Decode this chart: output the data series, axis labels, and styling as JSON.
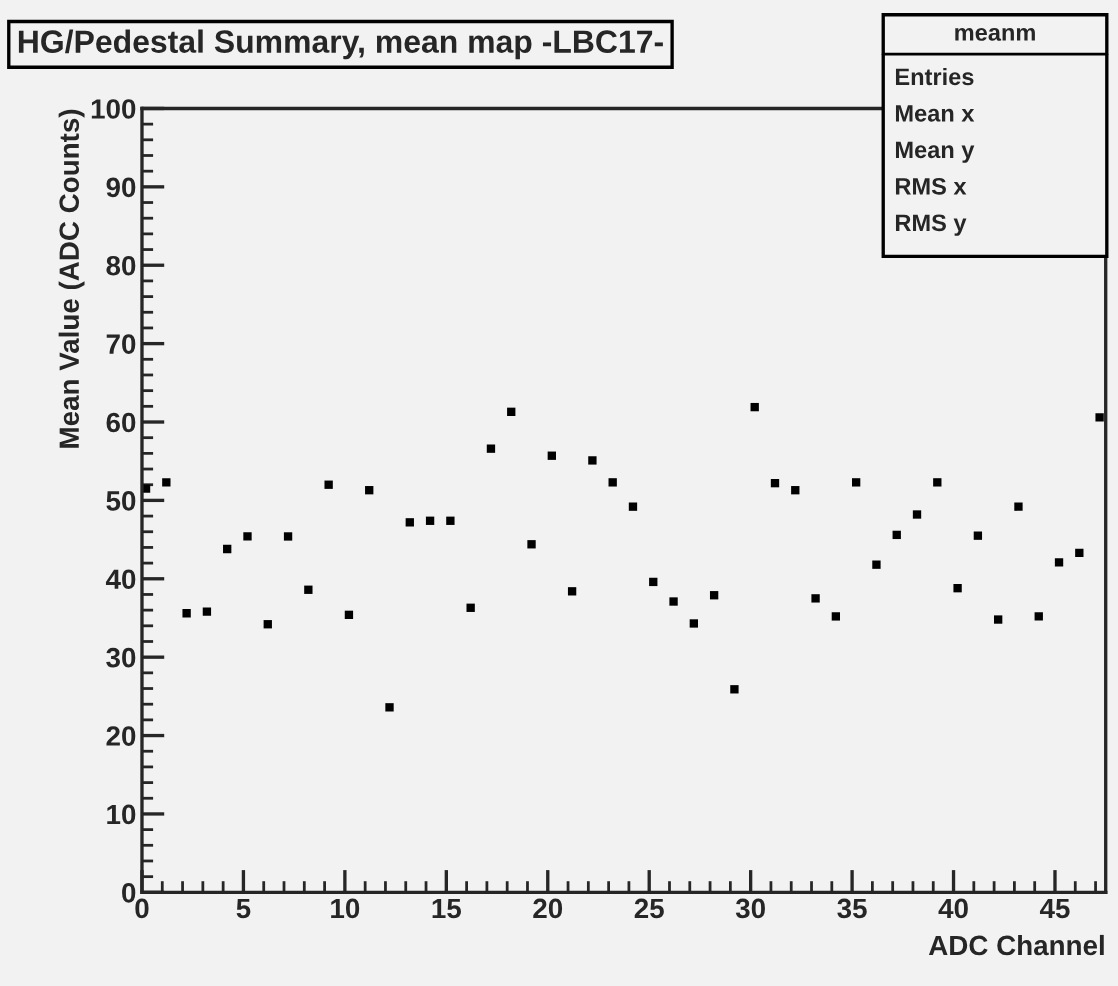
{
  "chart_data": {
    "type": "scatter",
    "title": "HG/Pedestal Summary, mean map -LBC17-",
    "xlabel": "ADC Channel",
    "ylabel": "Mean Value (ADC Counts)",
    "annotations": [
      "meanm",
      "Entries",
      "Mean x",
      "Mean y",
      "RMS x",
      "RMS y"
    ],
    "x": [
      0.2,
      1.2,
      2.2,
      3.2,
      4.2,
      5.2,
      6.2,
      7.2,
      8.2,
      9.2,
      10.2,
      11.2,
      12.2,
      13.2,
      14.2,
      15.2,
      16.2,
      17.2,
      18.2,
      19.2,
      20.2,
      21.2,
      22.2,
      23.2,
      24.2,
      25.2,
      26.2,
      27.2,
      28.2,
      29.2,
      30.2,
      31.2,
      32.2,
      33.2,
      34.2,
      35.2,
      36.2,
      37.2,
      38.2,
      39.2,
      40.2,
      41.2,
      42.2,
      43.2,
      44.2,
      45.2,
      46.2,
      47.2
    ],
    "series": [
      {
        "color": "#000000",
        "values": [
          51.5,
          52.3,
          35.6,
          35.8,
          43.8,
          45.4,
          34.2,
          45.4,
          38.6,
          52.0,
          35.4,
          51.3,
          23.6,
          47.2,
          47.4,
          47.4,
          36.3,
          56.6,
          61.3,
          44.4,
          55.7,
          38.4,
          55.1,
          52.3,
          49.2,
          39.6,
          37.1,
          34.3,
          37.9,
          25.9,
          61.9,
          52.2,
          51.3,
          37.5,
          35.2,
          52.3,
          41.8,
          45.6,
          48.2,
          52.3,
          38.8,
          45.5,
          34.8,
          49.2,
          35.2,
          42.1,
          43.3,
          60.6
        ]
      }
    ],
    "xlim": [
      0,
      47.5
    ],
    "ylim": [
      0,
      100
    ],
    "xticks": [
      0,
      5,
      10,
      15,
      20,
      25,
      30,
      35,
      40,
      45
    ],
    "yticks": [
      0,
      10,
      20,
      30,
      40,
      50,
      60,
      70,
      80,
      90,
      100
    ],
    "grid": false,
    "legend": false,
    "marker": "square"
  }
}
